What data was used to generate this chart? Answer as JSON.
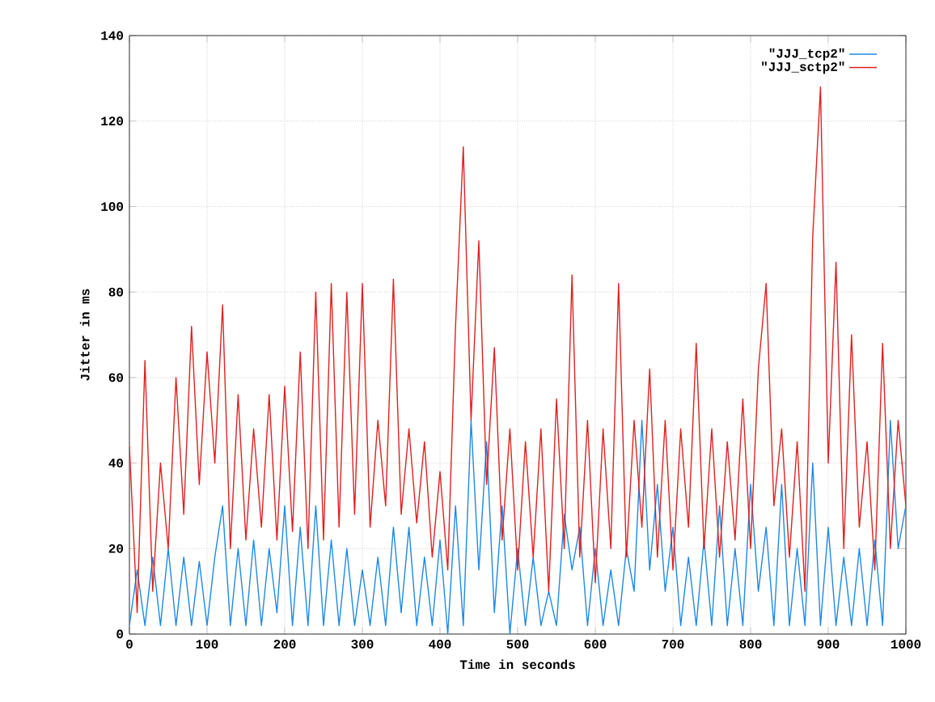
{
  "chart_data": {
    "type": "line",
    "xlabel": "Time in seconds",
    "ylabel": "Jitter in ms",
    "x": [
      0,
      10,
      20,
      30,
      40,
      50,
      60,
      70,
      80,
      90,
      100,
      110,
      120,
      130,
      140,
      150,
      160,
      170,
      180,
      190,
      200,
      210,
      220,
      230,
      240,
      250,
      260,
      270,
      280,
      290,
      300,
      310,
      320,
      330,
      340,
      350,
      360,
      370,
      380,
      390,
      400,
      410,
      420,
      430,
      440,
      450,
      460,
      470,
      480,
      490,
      500,
      510,
      520,
      530,
      540,
      550,
      560,
      570,
      580,
      590,
      600,
      610,
      620,
      630,
      640,
      650,
      660,
      670,
      680,
      690,
      700,
      710,
      720,
      730,
      740,
      750,
      760,
      770,
      780,
      790,
      800,
      810,
      820,
      830,
      840,
      850,
      860,
      870,
      880,
      890,
      900,
      910,
      920,
      930,
      940,
      950,
      960,
      970,
      980,
      990,
      1000
    ],
    "series": [
      {
        "name": "\"JJJ_tcp2\"",
        "color": "#1e88e5",
        "values": [
          2,
          15,
          2,
          18,
          2,
          20,
          2,
          18,
          2,
          17,
          2,
          18,
          30,
          2,
          20,
          2,
          22,
          2,
          20,
          5,
          30,
          2,
          25,
          2,
          30,
          2,
          22,
          2,
          20,
          2,
          15,
          2,
          18,
          2,
          25,
          5,
          25,
          2,
          18,
          2,
          22,
          0,
          30,
          2,
          50,
          15,
          45,
          5,
          30,
          0,
          20,
          2,
          18,
          2,
          10,
          2,
          28,
          15,
          25,
          2,
          20,
          2,
          15,
          2,
          20,
          10,
          50,
          15,
          35,
          10,
          25,
          2,
          18,
          2,
          22,
          2,
          30,
          2,
          20,
          2,
          35,
          10,
          25,
          2,
          35,
          2,
          20,
          2,
          40,
          2,
          25,
          2,
          18,
          2,
          20,
          2,
          22,
          2,
          50,
          20,
          30
        ]
      },
      {
        "name": "\"JJJ_sctp2\"",
        "color": "#e02020",
        "values": [
          44,
          5,
          64,
          10,
          40,
          20,
          60,
          28,
          72,
          35,
          66,
          40,
          77,
          20,
          56,
          22,
          48,
          25,
          56,
          22,
          58,
          24,
          66,
          20,
          80,
          22,
          82,
          25,
          80,
          28,
          82,
          25,
          50,
          30,
          83,
          28,
          48,
          26,
          45,
          18,
          38,
          15,
          72,
          114,
          50,
          92,
          35,
          67,
          22,
          48,
          15,
          45,
          18,
          48,
          10,
          55,
          20,
          84,
          18,
          50,
          12,
          48,
          20,
          82,
          18,
          50,
          25,
          62,
          18,
          50,
          15,
          48,
          25,
          68,
          20,
          48,
          18,
          45,
          22,
          55,
          20,
          62,
          82,
          30,
          48,
          18,
          45,
          10,
          93,
          128,
          40,
          87,
          20,
          70,
          25,
          45,
          15,
          68,
          20,
          50,
          30
        ]
      }
    ],
    "xlim": [
      0,
      1000
    ],
    "ylim": [
      0,
      140
    ],
    "xticks": [
      0,
      100,
      200,
      300,
      400,
      500,
      600,
      700,
      800,
      900,
      1000
    ],
    "yticks": [
      0,
      20,
      40,
      60,
      80,
      100,
      120,
      140
    ],
    "grid": true,
    "legend": "top right",
    "line_style": "solid",
    "marker": "none"
  }
}
